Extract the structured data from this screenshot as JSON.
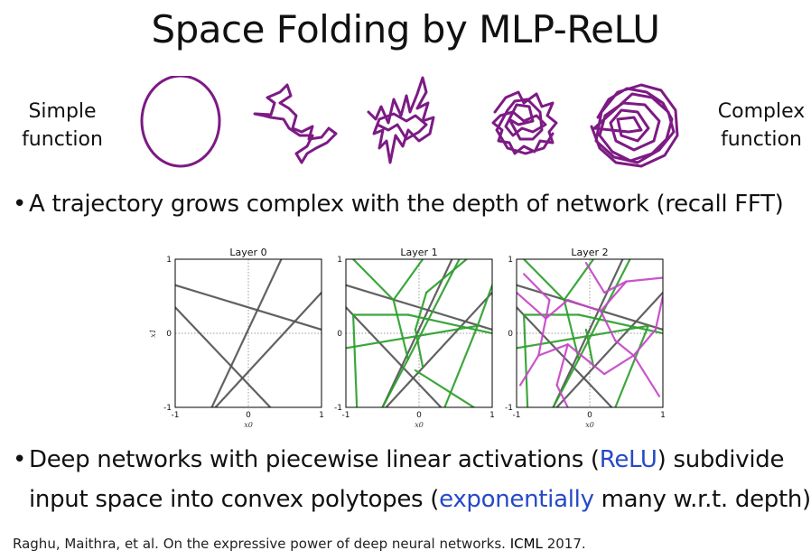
{
  "title": "Space Folding by MLP-ReLU",
  "left_label": [
    "Simple",
    "function"
  ],
  "right_label": [
    "Complex",
    "function"
  ],
  "colors": {
    "trajectory": "#7d1a84",
    "layer0": "#555555",
    "layer1": "#2ca02c",
    "layer2": "#c646c8",
    "blue": "#2549c8"
  },
  "bullet1": "A trajectory grows complex with the depth of network (recall FFT)",
  "bullet2": {
    "pre": "Deep networks with piecewise linear activations (",
    "relu": "ReLU",
    "mid": ") subdivide",
    "line2_pre": "input space into convex polytopes (",
    "exp": "exponentially",
    "line2_post": " many w.r.t. depth)"
  },
  "chart_data": [
    {
      "type": "line",
      "title": "Layer 0",
      "xlabel": "x0",
      "ylabel": "x1",
      "xlim": [
        -1,
        1
      ],
      "ylim": [
        -1,
        1
      ],
      "xticks": [
        "-1",
        "0",
        "1"
      ],
      "yticks": [
        "-1",
        "0",
        "1"
      ],
      "series": [
        {
          "name": "layer0",
          "color": "#555555",
          "segments": [
            [
              [
                -1,
                0.65
              ],
              [
                1,
                0.05
              ]
            ],
            [
              [
                -1,
                0.35
              ],
              [
                0.3,
                -1
              ]
            ],
            [
              [
                -0.5,
                -1
              ],
              [
                0.45,
                1
              ]
            ],
            [
              [
                -0.45,
                -1
              ],
              [
                1,
                0.55
              ]
            ]
          ]
        }
      ]
    },
    {
      "type": "line",
      "title": "Layer 1",
      "xlabel": "x0",
      "ylabel": "x1",
      "xlim": [
        -1,
        1
      ],
      "ylim": [
        -1,
        1
      ],
      "xticks": [
        "-1",
        "0",
        "1"
      ],
      "yticks": [
        "-1",
        "0",
        "1"
      ],
      "series": [
        {
          "name": "layer0",
          "color": "#555555",
          "segments": [
            [
              [
                -1,
                0.65
              ],
              [
                1,
                0.05
              ]
            ],
            [
              [
                -1,
                0.35
              ],
              [
                0.3,
                -1
              ]
            ],
            [
              [
                -0.5,
                -1
              ],
              [
                0.45,
                1
              ]
            ],
            [
              [
                -0.45,
                -1
              ],
              [
                1,
                0.55
              ]
            ]
          ]
        },
        {
          "name": "layer1",
          "color": "#2ca02c",
          "segments": [
            [
              [
                -0.9,
                1
              ],
              [
                -0.35,
                0.45
              ]
            ],
            [
              [
                -0.35,
                0.45
              ],
              [
                0.05,
                1
              ]
            ],
            [
              [
                -0.35,
                0.45
              ],
              [
                -0.15,
                -0.35
              ]
            ],
            [
              [
                -0.15,
                -0.35
              ],
              [
                0.55,
                1
              ]
            ],
            [
              [
                -0.15,
                -0.35
              ],
              [
                -0.5,
                -1
              ]
            ],
            [
              [
                -0.9,
                0.25
              ],
              [
                -0.15,
                0.25
              ]
            ],
            [
              [
                -0.15,
                0.25
              ],
              [
                1,
                0.0
              ]
            ],
            [
              [
                -1,
                -0.2
              ],
              [
                0.8,
                0.1
              ]
            ],
            [
              [
                0.8,
                0.1
              ],
              [
                0.35,
                -1
              ]
            ],
            [
              [
                0.8,
                0.1
              ],
              [
                1,
                0.65
              ]
            ],
            [
              [
                -0.85,
                -1
              ],
              [
                -0.9,
                0.25
              ]
            ],
            [
              [
                -0.05,
                -0.5
              ],
              [
                0.75,
                -1
              ]
            ],
            [
              [
                0.05,
                -0.45
              ],
              [
                -0.05,
                0.05
              ]
            ],
            [
              [
                -0.05,
                0.05
              ],
              [
                0.1,
                0.55
              ]
            ],
            [
              [
                0.1,
                0.55
              ],
              [
                0.65,
                1
              ]
            ]
          ]
        }
      ]
    },
    {
      "type": "line",
      "title": "Layer 2",
      "xlabel": "x0",
      "ylabel": "x1",
      "xlim": [
        -1,
        1
      ],
      "ylim": [
        -1,
        1
      ],
      "xticks": [
        "-1",
        "0",
        "1"
      ],
      "yticks": [
        "-1",
        "0",
        "1"
      ],
      "series": [
        {
          "name": "layer0",
          "color": "#555555",
          "segments": [
            [
              [
                -1,
                0.65
              ],
              [
                1,
                0.05
              ]
            ],
            [
              [
                -1,
                0.35
              ],
              [
                0.3,
                -1
              ]
            ],
            [
              [
                -0.5,
                -1
              ],
              [
                0.45,
                1
              ]
            ],
            [
              [
                -0.45,
                -1
              ],
              [
                1,
                0.55
              ]
            ]
          ]
        },
        {
          "name": "layer1",
          "color": "#2ca02c",
          "segments": [
            [
              [
                -0.9,
                1
              ],
              [
                -0.35,
                0.45
              ]
            ],
            [
              [
                -0.35,
                0.45
              ],
              [
                0.05,
                1
              ]
            ],
            [
              [
                -0.35,
                0.45
              ],
              [
                -0.15,
                -0.35
              ]
            ],
            [
              [
                -0.15,
                -0.35
              ],
              [
                0.55,
                1
              ]
            ],
            [
              [
                -0.15,
                -0.35
              ],
              [
                -0.5,
                -1
              ]
            ],
            [
              [
                -0.9,
                0.25
              ],
              [
                -0.15,
                0.25
              ]
            ],
            [
              [
                -0.15,
                0.25
              ],
              [
                1,
                0.0
              ]
            ],
            [
              [
                -1,
                -0.2
              ],
              [
                0.8,
                0.1
              ]
            ],
            [
              [
                0.8,
                0.1
              ],
              [
                0.35,
                -1
              ]
            ],
            [
              [
                -0.85,
                -1
              ],
              [
                -0.9,
                0.25
              ]
            ],
            [
              [
                0.05,
                -0.45
              ],
              [
                -0.05,
                0.05
              ]
            ]
          ]
        },
        {
          "name": "layer2",
          "color": "#c646c8",
          "segments": [
            [
              [
                -1,
                0.55
              ],
              [
                -0.6,
                0.2
              ]
            ],
            [
              [
                -0.6,
                0.2
              ],
              [
                -0.3,
                0.45
              ]
            ],
            [
              [
                -0.3,
                0.45
              ],
              [
                0.15,
                0.3
              ]
            ],
            [
              [
                0.15,
                0.3
              ],
              [
                0.5,
                0.7
              ]
            ],
            [
              [
                0.5,
                0.7
              ],
              [
                1,
                0.75
              ]
            ],
            [
              [
                -0.9,
                0.8
              ],
              [
                -0.55,
                0.45
              ]
            ],
            [
              [
                -0.55,
                0.45
              ],
              [
                -0.7,
                -0.3
              ]
            ],
            [
              [
                -0.7,
                -0.3
              ],
              [
                -0.95,
                -0.7
              ]
            ],
            [
              [
                -0.7,
                -0.3
              ],
              [
                -0.3,
                -0.15
              ]
            ],
            [
              [
                -0.3,
                -0.15
              ],
              [
                -0.45,
                -0.7
              ]
            ],
            [
              [
                -0.45,
                -0.7
              ],
              [
                -0.3,
                -1
              ]
            ],
            [
              [
                -0.3,
                -0.15
              ],
              [
                0.2,
                -0.55
              ]
            ],
            [
              [
                0.2,
                -0.55
              ],
              [
                0.6,
                -0.3
              ]
            ],
            [
              [
                0.6,
                -0.3
              ],
              [
                0.95,
                -0.85
              ]
            ],
            [
              [
                0.6,
                -0.3
              ],
              [
                0.9,
                0.05
              ]
            ],
            [
              [
                0.9,
                0.05
              ],
              [
                1,
                0.5
              ]
            ],
            [
              [
                0.15,
                0.3
              ],
              [
                0.35,
                -0.1
              ]
            ],
            [
              [
                0.35,
                -0.1
              ],
              [
                0.6,
                -0.3
              ]
            ],
            [
              [
                -0.05,
                0.95
              ],
              [
                0.2,
                0.55
              ]
            ],
            [
              [
                0.2,
                0.55
              ],
              [
                0.5,
                0.7
              ]
            ]
          ]
        }
      ]
    }
  ],
  "citation": {
    "pre": "Raghu, Maithra, et al. On the expressive power of deep neural networks. ",
    "venue": "ICML",
    "post": " 2017."
  }
}
